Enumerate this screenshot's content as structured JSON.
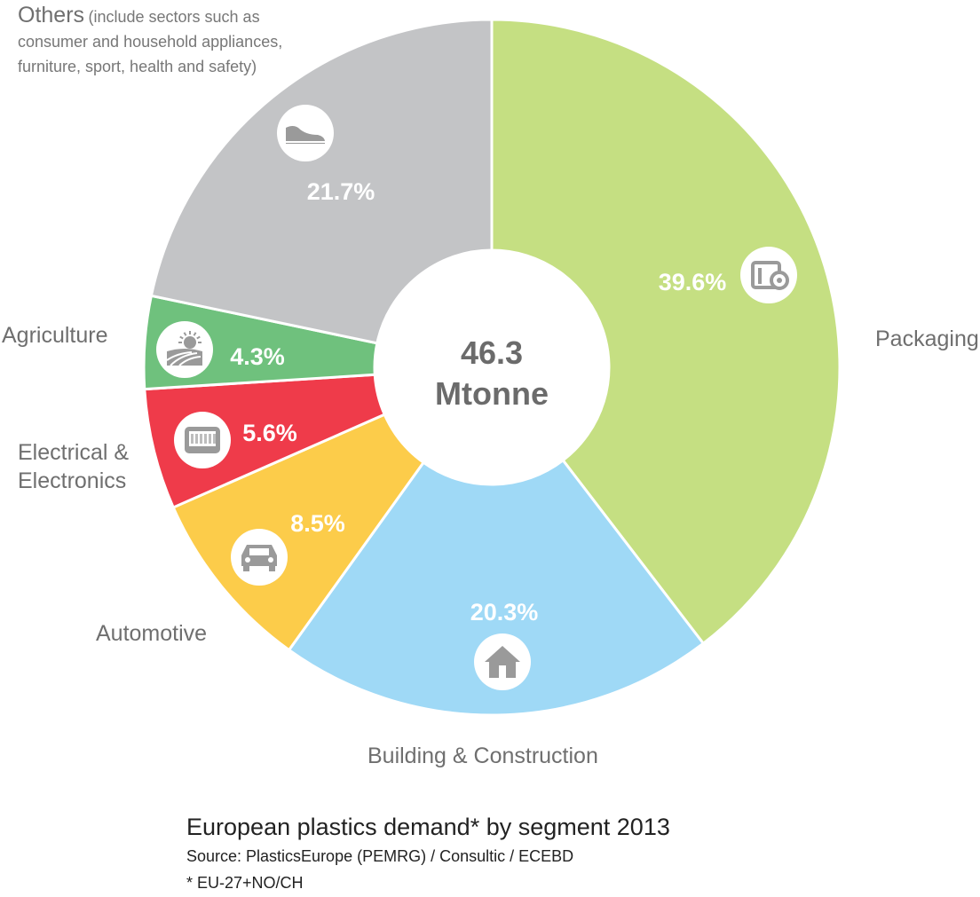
{
  "chart_data": {
    "type": "pie",
    "subtype": "donut",
    "title": "European plastics demand* by segment 2013",
    "source": "Source: PlasticsEurope (PEMRG) / Consultic / ECEBD",
    "footnote": "* EU-27+NO/CH",
    "center_value": "46.3",
    "center_unit": "Mtonne",
    "slices": [
      {
        "name": "Packaging",
        "value": 39.6,
        "label": "39.6%",
        "color": "#c5df82",
        "icon": "packaging-icon"
      },
      {
        "name": "Building & Construction",
        "value": 20.3,
        "label": "20.3%",
        "color": "#9fd9f6",
        "icon": "house-icon"
      },
      {
        "name": "Automotive",
        "value": 8.5,
        "label": "8.5%",
        "color": "#fccc4a",
        "icon": "car-icon"
      },
      {
        "name": "Electrical & Electronics",
        "value": 5.6,
        "label": "5.6%",
        "color": "#ef3b4a",
        "icon": "tablet-icon"
      },
      {
        "name": "Agriculture",
        "value": 4.3,
        "label": "4.3%",
        "color": "#6fc17d",
        "icon": "field-sun-icon"
      },
      {
        "name": "Others",
        "value": 21.7,
        "label": "21.7%",
        "color": "#c3c4c6",
        "icon": "shoe-icon"
      }
    ]
  },
  "labels": {
    "packaging": "Packaging",
    "building": "Building & Construction",
    "automotive": "Automotive",
    "electrical_1": "Electrical &",
    "electrical_2": "Electronics",
    "agriculture": "Agriculture",
    "others_title": "Others",
    "others_note": "(include sectors such as consumer and household appliances, furniture, sport, health and safety)"
  }
}
